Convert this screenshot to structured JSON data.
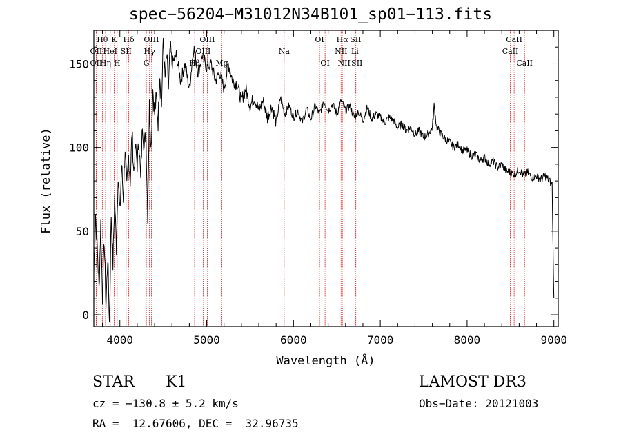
{
  "chart_data": {
    "type": "line",
    "title": "spec−56204−M31012N34B101_sp01−113.fits",
    "xlabel": "Wavelength (Å)",
    "ylabel": "Flux (relative)",
    "xlim": [
      3700,
      9050
    ],
    "ylim": [
      -7,
      170
    ],
    "x_ticks": [
      4000,
      5000,
      6000,
      7000,
      8000,
      9000
    ],
    "x_tick_labels": [
      "4000",
      "5000",
      "6000",
      "7000",
      "8000",
      "9000"
    ],
    "y_ticks": [
      0,
      50,
      100,
      150
    ],
    "y_tick_labels": [
      "0",
      "50",
      "100",
      "150"
    ],
    "series": [
      {
        "name": "flux",
        "x": [
          3700,
          3720,
          3740,
          3760,
          3780,
          3800,
          3820,
          3840,
          3860,
          3880,
          3900,
          3920,
          3940,
          3960,
          3980,
          4000,
          4020,
          4040,
          4060,
          4080,
          4100,
          4120,
          4140,
          4160,
          4180,
          4200,
          4220,
          4240,
          4260,
          4280,
          4300,
          4320,
          4340,
          4360,
          4380,
          4400,
          4420,
          4440,
          4460,
          4480,
          4500,
          4520,
          4540,
          4560,
          4580,
          4600,
          4650,
          4700,
          4750,
          4800,
          4850,
          4900,
          4950,
          5000,
          5050,
          5100,
          5150,
          5200,
          5250,
          5300,
          5350,
          5400,
          5450,
          5500,
          5550,
          5600,
          5650,
          5700,
          5750,
          5800,
          5850,
          5900,
          5950,
          6000,
          6050,
          6100,
          6150,
          6200,
          6250,
          6300,
          6350,
          6400,
          6450,
          6500,
          6550,
          6600,
          6650,
          6700,
          6750,
          6800,
          6850,
          6900,
          6950,
          7000,
          7050,
          7100,
          7150,
          7200,
          7250,
          7300,
          7350,
          7400,
          7450,
          7500,
          7550,
          7600,
          7620,
          7650,
          7700,
          7750,
          7800,
          7850,
          7900,
          7950,
          8000,
          8050,
          8100,
          8150,
          8200,
          8250,
          8300,
          8350,
          8400,
          8450,
          8500,
          8550,
          8600,
          8650,
          8700,
          8750,
          8800,
          8850,
          8900,
          8950,
          8980,
          8990,
          9000
        ],
        "y": [
          25,
          60,
          40,
          15,
          55,
          10,
          45,
          5,
          35,
          -5,
          60,
          30,
          70,
          40,
          85,
          60,
          90,
          70,
          100,
          75,
          95,
          80,
          110,
          85,
          100,
          90,
          105,
          80,
          115,
          100,
          110,
          60,
          125,
          100,
          135,
          120,
          130,
          115,
          145,
          125,
          165,
          140,
          155,
          135,
          160,
          150,
          155,
          140,
          150,
          135,
          160,
          145,
          155,
          148,
          150,
          140,
          145,
          135,
          150,
          140,
          138,
          128,
          135,
          125,
          130,
          122,
          128,
          118,
          125,
          115,
          130,
          120,
          125,
          118,
          122,
          115,
          123,
          117,
          125,
          120,
          128,
          122,
          126,
          120,
          128,
          122,
          125,
          118,
          122,
          116,
          124,
          117,
          120,
          118,
          115,
          118,
          116,
          112,
          114,
          110,
          112,
          108,
          110,
          106,
          108,
          112,
          125,
          112,
          108,
          105,
          103,
          100,
          102,
          98,
          98,
          95,
          96,
          92,
          94,
          90,
          92,
          88,
          90,
          86,
          85,
          84,
          87,
          83,
          85,
          82,
          83,
          81,
          83,
          80,
          78,
          40,
          10
        ]
      }
    ],
    "lines": [
      {
        "name": "Hθ",
        "wave": 3798,
        "row": 1
      },
      {
        "name": "K",
        "wave": 3934,
        "row": 1
      },
      {
        "name": "Hδ",
        "wave": 4102,
        "row": 1
      },
      {
        "name": "OII",
        "wave": 3727,
        "row": 2
      },
      {
        "name": "HeI",
        "wave": 3889,
        "row": 2
      },
      {
        "name": "SII",
        "wave": 4072,
        "row": 2
      },
      {
        "name": "OIII",
        "wave": 4363,
        "row": 1
      },
      {
        "name": "Hγ",
        "wave": 4341,
        "row": 2
      },
      {
        "name": "G",
        "wave": 4305,
        "row": 3
      },
      {
        "name": "OII",
        "wave": 3727,
        "row": 3
      },
      {
        "name": "Hη",
        "wave": 3835,
        "row": 3
      },
      {
        "name": "H",
        "wave": 3969,
        "row": 3
      },
      {
        "name": "OIII",
        "wave": 5007,
        "row": 1
      },
      {
        "name": "OIII",
        "wave": 4959,
        "row": 2
      },
      {
        "name": "Hβ",
        "wave": 4861,
        "row": 3
      },
      {
        "name": "Mg",
        "wave": 5175,
        "row": 3
      },
      {
        "name": "Na",
        "wave": 5893,
        "row": 2
      },
      {
        "name": "OI",
        "wave": 6300,
        "row": 1
      },
      {
        "name": "OI",
        "wave": 6364,
        "row": 3
      },
      {
        "name": "Hα",
        "wave": 6563,
        "row": 1
      },
      {
        "name": "SII",
        "wave": 6716,
        "row": 1
      },
      {
        "name": "NII",
        "wave": 6548,
        "row": 2
      },
      {
        "name": "Li",
        "wave": 6708,
        "row": 2
      },
      {
        "name": "NII",
        "wave": 6583,
        "row": 3
      },
      {
        "name": "SII",
        "wave": 6731,
        "row": 3
      },
      {
        "name": "CaII",
        "wave": 8542,
        "row": 1
      },
      {
        "name": "CaII",
        "wave": 8498,
        "row": 2
      },
      {
        "name": "CaII",
        "wave": 8662,
        "row": 3
      }
    ]
  },
  "info": {
    "object_class": "STAR",
    "subclass": "K1",
    "survey": "LAMOST DR3",
    "cz_line": "cz = −130.8 ± 5.2 km/s",
    "obs_date_line": "Obs−Date: 20121003",
    "radec_line": "RA =  12.67606, DEC =  32.96735"
  },
  "colors": {
    "line_marker": "#cc2222",
    "spectrum": "#000000"
  }
}
